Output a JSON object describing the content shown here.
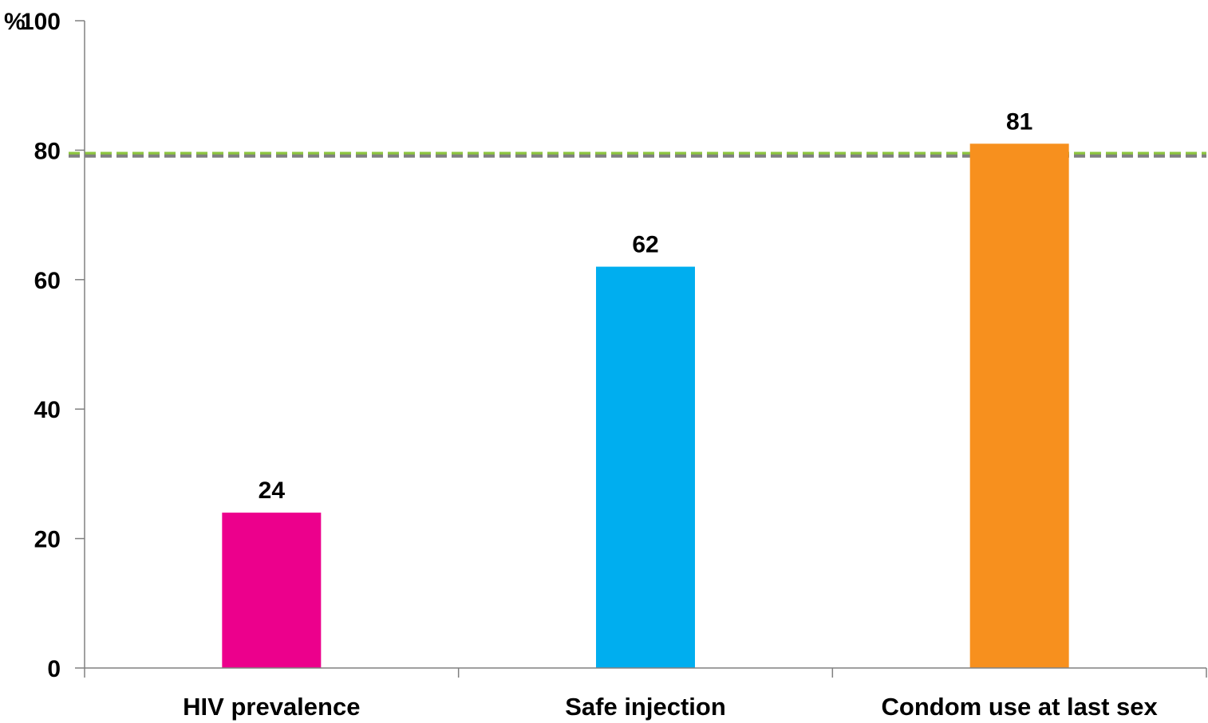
{
  "chart_data": {
    "type": "bar",
    "categories": [
      "HIV prevalence",
      "Safe injection",
      "Condom use at last sex"
    ],
    "values": [
      24,
      62,
      81
    ],
    "data_labels": [
      "24",
      "62",
      "81"
    ],
    "ylabel": "%",
    "ylim": [
      0,
      100
    ],
    "yticks": [
      0,
      20,
      40,
      60,
      80,
      100
    ],
    "ytick_labels": [
      "0",
      "20",
      "40",
      "60",
      "80",
      "100"
    ],
    "grid": false,
    "legend": "none",
    "bar_colors": [
      "#EC008C",
      "#00AEEF",
      "#F7901E"
    ],
    "reference_lines": [
      {
        "value": 79.5,
        "color": "#8DC63F",
        "style": "dashed"
      },
      {
        "value": 79.1,
        "color": "#808080",
        "style": "dashed"
      }
    ]
  }
}
